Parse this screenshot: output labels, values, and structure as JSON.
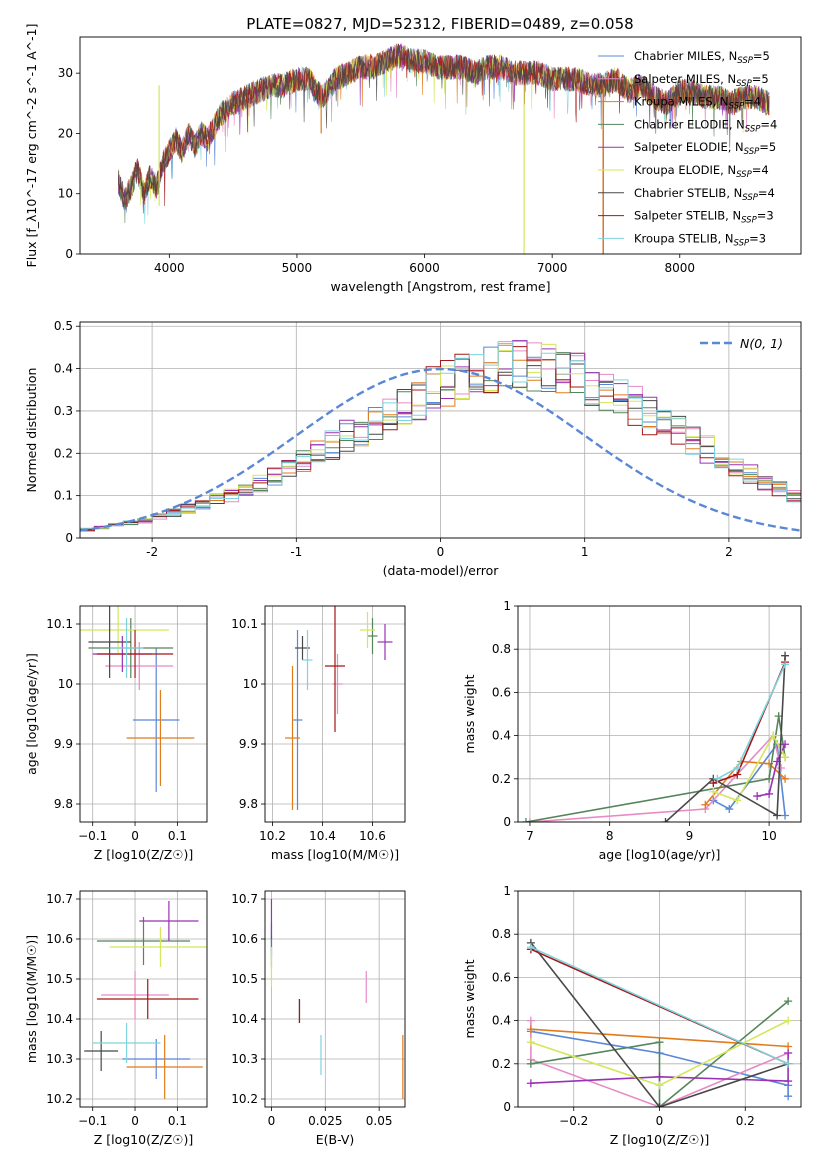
{
  "title": "PLATE=0827, MJD=52312, FIBERID=0489, z=0.058",
  "model_names": [
    "Chabrier MILES",
    "Salpeter MILES",
    "Kroupa MILES",
    "Chabrier ELODIE",
    "Salpeter ELODIE",
    "Kroupa ELODIE",
    "Chabrier STELIB",
    "Salpeter STELIB",
    "Kroupa STELIB"
  ],
  "model_colors": [
    "#5a87d6",
    "#e88ac4",
    "#e07b1c",
    "#55855a",
    "#9a31b5",
    "#d4e65a",
    "#484848",
    "#a31818",
    "#7fd3de"
  ],
  "chart_data": [
    {
      "type": "line",
      "title": "PLATE=0827, MJD=52312, FIBERID=0489, z=0.058",
      "xlabel": "wavelength [Angstrom, rest frame]",
      "ylabel": "Flux [f_λ10^-17 erg cm^-2 s^-1 A^-1]",
      "xlim": [
        3300,
        8950
      ],
      "ylim": [
        0,
        36
      ],
      "xticks": [
        4000,
        5000,
        6000,
        7000,
        8000
      ],
      "yticks": [
        0,
        10,
        20,
        30
      ],
      "legend": "top-right",
      "grid": false,
      "legend_entries": [
        "Chabrier MILES, N_SSP=5",
        "Salpeter MILES, N_SSP=5",
        "Kroupa MILES, N_SSP=4",
        "Chabrier ELODIE, N_SSP=4",
        "Salpeter ELODIE, N_SSP=5",
        "Kroupa ELODIE, N_SSP=4",
        "Chabrier STELIB, N_SSP=4",
        "Salpeter STELIB, N_SSP=3",
        "Kroupa STELIB, N_SSP=3"
      ],
      "spectrum_x": [
        3600,
        3650,
        3700,
        3750,
        3800,
        3850,
        3900,
        3950,
        4000,
        4050,
        4100,
        4150,
        4200,
        4250,
        4300,
        4350,
        4400,
        4450,
        4500,
        4600,
        4700,
        4800,
        4900,
        5000,
        5100,
        5150,
        5200,
        5300,
        5400,
        5500,
        5600,
        5700,
        5800,
        5900,
        6000,
        6100,
        6200,
        6300,
        6400,
        6500,
        6600,
        6700,
        6800,
        6900,
        7000,
        7100,
        7200,
        7300,
        7400,
        7500,
        7600,
        7700,
        7800,
        7900,
        8000,
        8100,
        8200,
        8300,
        8400,
        8500,
        8600,
        8700
      ],
      "spectrum_y": [
        12,
        9,
        11,
        14,
        10,
        13,
        11,
        15,
        17,
        19,
        17,
        20,
        18,
        20,
        19,
        21,
        23,
        24,
        25,
        26,
        27,
        28,
        28,
        29,
        29,
        27,
        26,
        29,
        30,
        31,
        31,
        32,
        33,
        32,
        32,
        31,
        31,
        31,
        30,
        31,
        31,
        30,
        30,
        30,
        29,
        29,
        29,
        28,
        28,
        29,
        27,
        28,
        26,
        25,
        27,
        27,
        26,
        26,
        25,
        26,
        26,
        25
      ]
    },
    {
      "type": "bar",
      "subtype": "step-histogram",
      "xlabel": "(data-model)/error",
      "ylabel": "Normed distribution",
      "xlim": [
        -2.5,
        2.5
      ],
      "ylim": [
        0,
        0.51
      ],
      "xticks": [
        -2,
        -1,
        0,
        1,
        2
      ],
      "yticks": [
        0.0,
        0.1,
        0.2,
        0.3,
        0.4,
        0.5
      ],
      "grid": true,
      "legend": "top-right",
      "legend_entries": [
        "N(0, 1)"
      ],
      "bin_width": 0.1,
      "hist_base": [
        0.02,
        0.025,
        0.03,
        0.035,
        0.04,
        0.05,
        0.06,
        0.07,
        0.08,
        0.09,
        0.1,
        0.115,
        0.13,
        0.145,
        0.16,
        0.18,
        0.2,
        0.22,
        0.24,
        0.255,
        0.27,
        0.29,
        0.31,
        0.33,
        0.35,
        0.37,
        0.38,
        0.39,
        0.4,
        0.41,
        0.42,
        0.41,
        0.4,
        0.39,
        0.38,
        0.37,
        0.35,
        0.33,
        0.31,
        0.29,
        0.27,
        0.25,
        0.23,
        0.21,
        0.19,
        0.17,
        0.15,
        0.13,
        0.115,
        0.1
      ]
    },
    {
      "type": "scatter",
      "xlabel": "Z [log10(Z/Z☉)]",
      "ylabel": "age  [log10(age/yr)]",
      "xlim": [
        -0.13,
        0.17
      ],
      "ylim": [
        9.77,
        10.13
      ],
      "xticks": [
        -0.1,
        0.0,
        0.1
      ],
      "yticks": [
        9.8,
        9.9,
        10.0,
        10.1
      ],
      "grid": true,
      "x": [
        0.05,
        0.01,
        0.06,
        -0.01,
        -0.03,
        -0.04,
        -0.06,
        0.0,
        -0.02
      ],
      "y": [
        9.94,
        10.03,
        9.91,
        10.06,
        10.05,
        10.09,
        10.07,
        10.05,
        10.06
      ],
      "xerr": [
        0.055,
        0.08,
        0.08,
        0.1,
        0.07,
        0.12,
        0.05,
        0.09,
        0.04
      ],
      "yerr": [
        0.12,
        0.04,
        0.08,
        0.05,
        0.03,
        0.04,
        0.06,
        0.04,
        0.05
      ]
    },
    {
      "type": "scatter",
      "xlabel": "mass [log10(M/M☉)]",
      "ylabel": "",
      "xlim": [
        10.17,
        10.73
      ],
      "ylim": [
        9.77,
        10.13
      ],
      "xticks": [
        10.2,
        10.4,
        10.6
      ],
      "yticks": [
        9.8,
        9.9,
        10.0,
        10.1
      ],
      "grid": true,
      "x": [
        10.3,
        10.46,
        10.28,
        10.6,
        10.65,
        10.58,
        10.32,
        10.45,
        10.34
      ],
      "y": [
        9.94,
        10.0,
        9.91,
        10.08,
        10.07,
        10.09,
        10.06,
        10.03,
        10.04
      ],
      "xerr": [
        0.02,
        0.02,
        0.03,
        0.02,
        0.03,
        0.03,
        0.03,
        0.04,
        0.02
      ],
      "yerr": [
        0.15,
        0.05,
        0.12,
        0.03,
        0.03,
        0.03,
        0.02,
        0.11,
        0.05
      ]
    },
    {
      "type": "line",
      "xlabel": "age  [log10(age/yr)]",
      "ylabel": "mass weight",
      "xlim": [
        6.85,
        10.4
      ],
      "ylim": [
        0,
        1.0
      ],
      "xticks": [
        7,
        8,
        9,
        10
      ],
      "yticks": [
        0.0,
        0.2,
        0.4,
        0.6,
        0.8,
        1.0
      ],
      "grid": true,
      "series": [
        {
          "x": [
            9.3,
            9.5,
            10.1,
            10.2
          ],
          "y": [
            0.1,
            0.06,
            0.36,
            0.03
          ]
        },
        {
          "x": [
            7.0,
            9.2,
            10.05,
            10.15
          ],
          "y": [
            0.0,
            0.06,
            0.4,
            0.25
          ]
        },
        {
          "x": [
            9.2,
            9.65,
            10.0,
            10.2
          ],
          "y": [
            0.08,
            0.28,
            0.27,
            0.2
          ]
        },
        {
          "x": [
            6.95,
            10.0,
            10.12,
            10.2
          ],
          "y": [
            0.0,
            0.2,
            0.49,
            0.3
          ]
        },
        {
          "x": [
            9.85,
            10.0,
            10.1,
            10.2
          ],
          "y": [
            0.12,
            0.13,
            0.28,
            0.36
          ]
        },
        {
          "x": [
            9.3,
            9.6,
            10.05,
            10.2
          ],
          "y": [
            0.14,
            0.1,
            0.4,
            0.3
          ]
        },
        {
          "x": [
            8.7,
            9.3,
            10.1,
            10.2
          ],
          "y": [
            0.0,
            0.2,
            0.03,
            0.77
          ]
        },
        {
          "x": [
            9.3,
            9.6,
            10.2
          ],
          "y": [
            0.18,
            0.22,
            0.74
          ]
        },
        {
          "x": [
            9.35,
            9.6,
            10.2
          ],
          "y": [
            0.2,
            0.25,
            0.73
          ]
        }
      ]
    },
    {
      "type": "scatter",
      "xlabel": "Z [log10(Z/Z☉)]",
      "ylabel": "mass [log10(M/M☉)]",
      "xlim": [
        -0.13,
        0.17
      ],
      "ylim": [
        10.18,
        10.72
      ],
      "xticks": [
        -0.1,
        0.0,
        0.1
      ],
      "yticks": [
        10.2,
        10.3,
        10.4,
        10.5,
        10.6,
        10.7
      ],
      "grid": true,
      "x": [
        0.05,
        0.0,
        0.07,
        0.02,
        0.08,
        0.06,
        -0.08,
        0.03,
        -0.02
      ],
      "y": [
        10.3,
        10.46,
        10.28,
        10.595,
        10.645,
        10.58,
        10.32,
        10.45,
        10.34
      ],
      "xerr": [
        0.08,
        0.08,
        0.09,
        0.11,
        0.07,
        0.12,
        0.04,
        0.12,
        0.08
      ],
      "yerr": [
        0.05,
        0.06,
        0.08,
        0.06,
        0.05,
        0.05,
        0.05,
        0.05,
        0.05
      ]
    },
    {
      "type": "scatter",
      "xlabel": "E(B-V)",
      "ylabel": "",
      "xlim": [
        -0.003,
        0.062
      ],
      "ylim": [
        10.18,
        10.72
      ],
      "xticks": [
        0.0,
        0.025,
        0.05
      ],
      "yticks": [
        10.2,
        10.3,
        10.4,
        10.5,
        10.6,
        10.7
      ],
      "grid": true,
      "x": [
        0.0,
        0.044,
        0.061,
        0.0,
        0.0,
        0.0,
        0.013,
        0.013,
        0.023
      ],
      "y": [
        10.6,
        10.48,
        10.28,
        10.57,
        10.65,
        10.53,
        10.42,
        10.42,
        10.31
      ],
      "yerr": [
        0.04,
        0.04,
        0.08,
        0.04,
        0.05,
        0.05,
        0.03,
        0.03,
        0.05
      ]
    },
    {
      "type": "line",
      "xlabel": "Z [log10(Z/Z☉)]",
      "ylabel": "mass weight",
      "xlim": [
        -0.33,
        0.33
      ],
      "ylim": [
        0,
        1.0
      ],
      "xticks": [
        -0.2,
        0.0,
        0.2
      ],
      "yticks": [
        0.0,
        0.2,
        0.4,
        0.6,
        0.8,
        1.0
      ],
      "grid": true,
      "series": [
        {
          "x": [
            -0.3,
            0.0,
            0.3,
            0.3
          ],
          "y": [
            0.35,
            0.25,
            0.1,
            0.05
          ]
        },
        {
          "x": [
            -0.3,
            -0.3,
            0.0,
            0.3
          ],
          "y": [
            0.4,
            0.22,
            0.0,
            0.25
          ]
        },
        {
          "x": [
            -0.3,
            0.3
          ],
          "y": [
            0.36,
            0.28
          ]
        },
        {
          "x": [
            -0.3,
            0.0,
            0.0,
            0.3
          ],
          "y": [
            0.2,
            0.3,
            0.0,
            0.49
          ]
        },
        {
          "x": [
            -0.3,
            0.0,
            0.3,
            0.3
          ],
          "y": [
            0.11,
            0.14,
            0.12,
            0.25
          ]
        },
        {
          "x": [
            -0.3,
            0.0,
            0.3
          ],
          "y": [
            0.3,
            0.1,
            0.4
          ]
        },
        {
          "x": [
            -0.3,
            0.0,
            0.3
          ],
          "y": [
            0.76,
            0.0,
            0.2
          ]
        },
        {
          "x": [
            -0.3,
            0.3
          ],
          "y": [
            0.73,
            0.2
          ]
        },
        {
          "x": [
            -0.3,
            0.3
          ],
          "y": [
            0.74,
            0.2
          ]
        }
      ]
    }
  ]
}
